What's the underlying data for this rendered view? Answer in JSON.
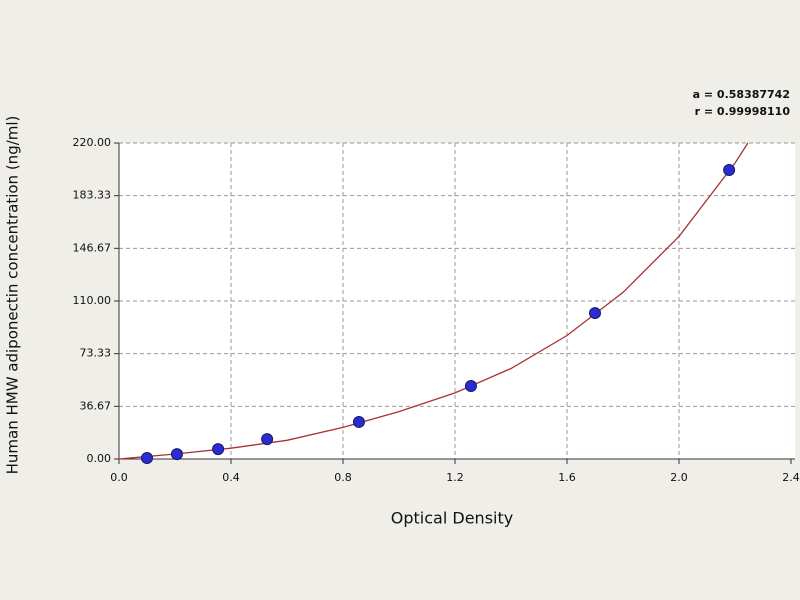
{
  "chart_data": {
    "type": "scatter",
    "x_label": "Optical Density",
    "y_label": "Human HMW adiponectin concentration (ng/ml)",
    "annotations": [
      "a = 0.58387742",
      "r = 0.99998110"
    ],
    "xlim": [
      0,
      2.4
    ],
    "xticks": [
      {
        "value": 0,
        "label": "0.0"
      },
      0.4,
      0.8,
      1.2,
      1.6,
      {
        "value": 2,
        "label": "2.0"
      },
      2.4
    ],
    "ylim": [
      0,
      220
    ],
    "yticks": [
      {
        "value": 0,
        "label": "0.00"
      },
      36.67,
      73.33,
      {
        "value": 110,
        "label": "110.00"
      },
      146.67,
      183.33,
      {
        "value": 220,
        "label": "220.00"
      }
    ],
    "grid": true,
    "series": [
      {
        "kind": "points",
        "color": "#2b2bd6",
        "x": [
          0.1,
          0.207,
          0.354,
          0.529,
          0.857,
          1.257,
          1.7,
          2.179
        ],
        "values": [
          0.7,
          3.4,
          6.9,
          13.8,
          25.8,
          50.8,
          101.6,
          201.2
        ]
      },
      {
        "kind": "curve",
        "color": "#a83232",
        "x": [
          0,
          0.2,
          0.4,
          0.6,
          0.8,
          1.0,
          1.2,
          1.4,
          1.6,
          1.8,
          2.0,
          2.2,
          2.246
        ],
        "values": [
          0,
          3.5,
          7.5,
          13,
          22,
          33,
          46,
          63,
          86,
          116,
          155,
          206,
          220
        ]
      }
    ]
  }
}
